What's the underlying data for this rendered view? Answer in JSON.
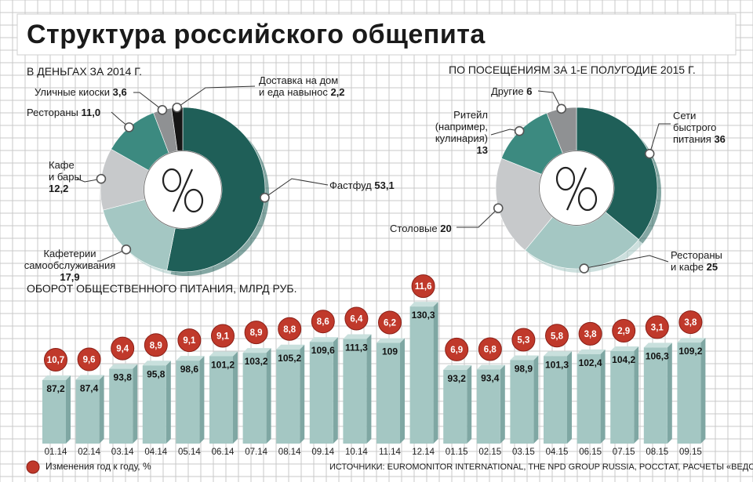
{
  "title": "Структура российского общепита",
  "source": "ИСТОЧНИКИ: EUROMONITOR INTERNATIONAL, THE NPD GROUP RUSSIA, РОССТАТ, РАСЧЕТЫ «ВЕДОМОСТЕЙ»",
  "legend_label": "Изменения год к году, %",
  "colors": {
    "dark_teal": "#1f5f58",
    "mid_teal": "#3c8a80",
    "light_teal": "#a4c7c3",
    "light_gray": "#c7c9cb",
    "mid_gray": "#8f9193",
    "black": "#151515",
    "badge_red": "#c0392b",
    "grid": "#c9c9c9"
  },
  "icons": {
    "pie_center": "percent-icon",
    "legend": "red-circle-icon"
  },
  "chart_data": [
    {
      "type": "pie",
      "title": "В ДЕНЬГАХ ЗА 2014 Г.",
      "slices": [
        {
          "label": "Фастфуд",
          "value": 53.1,
          "value_text": "53,1",
          "color": "#1f5f58"
        },
        {
          "label": "Кафетерии самообслуживания",
          "value": 17.9,
          "value_text": "17,9",
          "color": "#a4c7c3"
        },
        {
          "label": "Кафе и бары",
          "value": 12.2,
          "value_text": "12,2",
          "color": "#c7c9cb"
        },
        {
          "label": "Рестораны",
          "value": 11.0,
          "value_text": "11,0",
          "color": "#3c8a80"
        },
        {
          "label": "Уличные киоски",
          "value": 3.6,
          "value_text": "3,6",
          "color": "#8f9193"
        },
        {
          "label": "Доставка на дом и еда навынос",
          "value": 2.2,
          "value_text": "2,2",
          "color": "#151515"
        }
      ],
      "labels": {
        "fastfood": {
          "name": "Фастфуд",
          "value": "53,1"
        },
        "cafeterias": {
          "line1": "Кафетерии",
          "line2": "самообслуживания",
          "value": "17,9"
        },
        "cafes": {
          "line1": "Кафе",
          "line2": "и бары",
          "value": "12,2"
        },
        "restaurants": {
          "name": "Рестораны",
          "value": "11,0"
        },
        "kiosks": {
          "name": "Уличные киоски",
          "value": "3,6"
        },
        "delivery": {
          "line1": "Доставка на дом",
          "line2": "и еда навынос",
          "value": "2,2"
        }
      }
    },
    {
      "type": "pie",
      "title": "ПО ПОСЕЩЕНИЯМ ЗА 1-Е ПОЛУГОДИЕ 2015 Г.",
      "slices": [
        {
          "label": "Сети быстрого питания",
          "value": 36,
          "value_text": "36",
          "color": "#1f5f58"
        },
        {
          "label": "Рестораны и кафе",
          "value": 25,
          "value_text": "25",
          "color": "#a4c7c3"
        },
        {
          "label": "Столовые",
          "value": 20,
          "value_text": "20",
          "color": "#c7c9cb"
        },
        {
          "label": "Ритейл (например, кулинария)",
          "value": 13,
          "value_text": "13",
          "color": "#3c8a80"
        },
        {
          "label": "Другие",
          "value": 6,
          "value_text": "6",
          "color": "#8f9193"
        }
      ],
      "labels": {
        "chains": {
          "line1": "Сети",
          "line2": "быстрого",
          "line3": "питания",
          "value": "36"
        },
        "restcafe": {
          "line1": "Рестораны",
          "line2": "и кафе",
          "value": "25"
        },
        "canteens": {
          "name": "Столовые",
          "value": "20"
        },
        "retail": {
          "line1": "Ритейл",
          "line2": "(например,",
          "line3": "кулинария)",
          "value": "13"
        },
        "other": {
          "name": "Другие",
          "value": "6"
        }
      }
    },
    {
      "type": "bar",
      "title": "ОБОРОТ ОБЩЕСТВЕННОГО ПИТАНИЯ, МЛРД РУБ.",
      "categories": [
        "01.14",
        "02.14",
        "03.14",
        "04.14",
        "05.14",
        "06.14",
        "07.14",
        "08.14",
        "09.14",
        "10.14",
        "11.14",
        "12.14",
        "01.15",
        "02.15",
        "03.15",
        "04.15",
        "06.15",
        "07.15",
        "08.15",
        "09.15"
      ],
      "values": [
        87.2,
        87.4,
        93.8,
        95.8,
        98.6,
        101.2,
        103.2,
        105.2,
        109.6,
        111.3,
        109,
        130.3,
        93.2,
        93.4,
        98.9,
        101.3,
        102.4,
        104.2,
        106.3,
        109.2
      ],
      "value_labels": [
        "87,2",
        "87,4",
        "93,8",
        "95,8",
        "98,6",
        "101,2",
        "103,2",
        "105,2",
        "109,6",
        "111,3",
        "109",
        "130,3",
        "93,2",
        "93,4",
        "98,9",
        "101,3",
        "102,4",
        "104,2",
        "106,3",
        "109,2"
      ],
      "yoy_change": [
        10.7,
        9.6,
        9.4,
        8.9,
        9.1,
        9.1,
        8.9,
        8.8,
        8.6,
        6.4,
        6.2,
        11.6,
        6.9,
        6.8,
        5.3,
        5.8,
        3.8,
        2.9,
        3.1,
        3.8
      ],
      "yoy_labels": [
        "10,7",
        "9,6",
        "9,4",
        "8,9",
        "9,1",
        "9,1",
        "8,9",
        "8,8",
        "8,6",
        "6,4",
        "6,2",
        "11,6",
        "6,9",
        "6,8",
        "5,3",
        "5,8",
        "3,8",
        "2,9",
        "3,1",
        "3,8"
      ]
    }
  ]
}
